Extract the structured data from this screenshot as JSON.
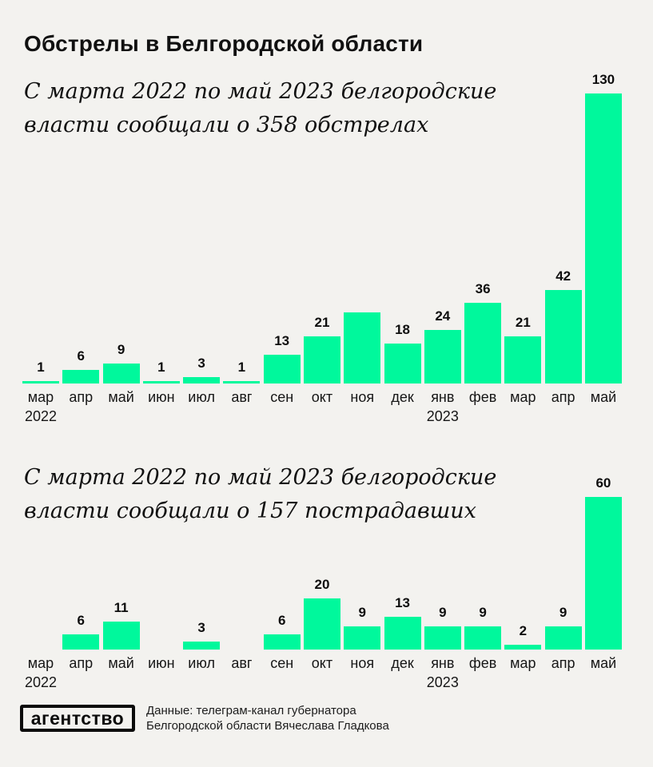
{
  "title": "Обстрелы в Белгородской области",
  "colors": {
    "bar": "#00F89C",
    "background": "#F3F2EF",
    "text": "#111111"
  },
  "chart_data": [
    {
      "type": "bar",
      "title": "С марта 2022 по май 2023 белгородские власти сообщали о 358 обстрелах",
      "subtitle_lines": "С марта 2022 по май 2023 белгородские\nвласти сообщали о 358 обстрелах",
      "categories": [
        "мар 2022",
        "апр",
        "май",
        "июн",
        "июл",
        "авг",
        "сен",
        "окт",
        "ноя",
        "дек",
        "янв 2023",
        "фев",
        "мар",
        "апр",
        "май"
      ],
      "values": [
        1,
        6,
        9,
        1,
        3,
        1,
        13,
        21,
        32,
        18,
        24,
        36,
        21,
        42,
        130
      ],
      "value_labels": [
        "1",
        "6",
        "9",
        "1",
        "3",
        "1",
        "13",
        "21",
        "",
        "18",
        "24",
        "36",
        "21",
        "42",
        "130"
      ],
      "total": 358,
      "ylim": [
        0,
        130
      ],
      "grid": false,
      "legend": false
    },
    {
      "type": "bar",
      "title": "С марта 2022 по май 2023 белгородские власти сообщали о 157 пострадавших",
      "subtitle_lines": "С марта 2022 по май 2023 белгородские\nвласти сообщали о 157 пострадавших",
      "categories": [
        "мар 2022",
        "апр",
        "май",
        "июн",
        "июл",
        "авг",
        "сен",
        "окт",
        "ноя",
        "дек",
        "янв 2023",
        "фев",
        "мар",
        "апр",
        "май"
      ],
      "values": [
        0,
        6,
        11,
        0,
        3,
        0,
        6,
        20,
        9,
        13,
        9,
        9,
        2,
        9,
        60
      ],
      "value_labels": [
        "",
        "6",
        "11",
        "",
        "3",
        "",
        "6",
        "20",
        "9",
        "13",
        "9",
        "9",
        "2",
        "9",
        "60"
      ],
      "total": 157,
      "ylim": [
        0,
        60
      ],
      "grid": false,
      "legend": false
    }
  ],
  "footer": {
    "logo": "агентство",
    "source": "Данные: телеграм-канал губернатора\nБелгородской области Вячеслава Гладкова"
  }
}
